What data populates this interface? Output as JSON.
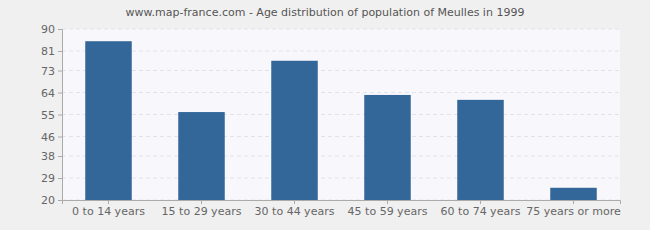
{
  "chart_data": {
    "type": "bar",
    "title": "www.map-france.com - Age distribution of population of Meulles in 1999",
    "categories": [
      "0 to 14 years",
      "15 to 29 years",
      "30 to 44 years",
      "45 to 59 years",
      "60 to 74 years",
      "75 years or more"
    ],
    "values": [
      85,
      56,
      77,
      63,
      61,
      25
    ],
    "color": "#336699",
    "ylim": [
      20,
      90
    ],
    "yticks": [
      20,
      29,
      38,
      46,
      55,
      64,
      73,
      81,
      90
    ],
    "grid": true
  }
}
